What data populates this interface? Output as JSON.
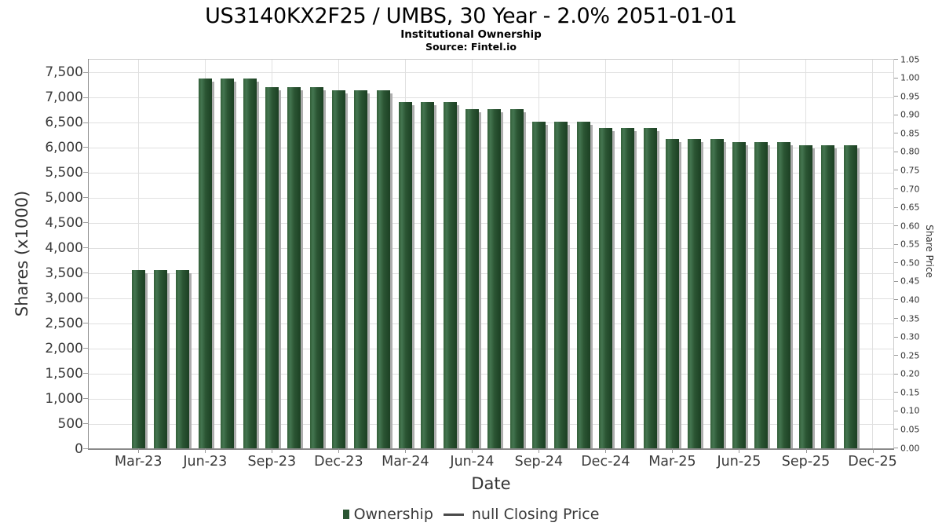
{
  "header": {
    "title": "US3140KX2F25 / UMBS, 30 Year - 2.0% 2051-01-01",
    "subtitle": "Institutional Ownership",
    "source": "Source: Fintel.io"
  },
  "chart_data": {
    "type": "bar",
    "title": "US3140KX2F25 / UMBS, 30 Year - 2.0% 2051-01-01",
    "subtitle": "Institutional Ownership",
    "source": "Source: Fintel.io",
    "xlabel": "Date",
    "ylabel_left": "Shares (x1000)",
    "ylabel_right": "Share Price",
    "x": [
      "Mar-23",
      "Apr-23",
      "May-23",
      "Jun-23",
      "Jul-23",
      "Aug-23",
      "Sep-23",
      "Oct-23",
      "Nov-23",
      "Dec-23",
      "Jan-24",
      "Feb-24",
      "Mar-24",
      "Apr-24",
      "May-24",
      "Jun-24",
      "Jul-24",
      "Aug-24",
      "Sep-24",
      "Oct-24",
      "Nov-24",
      "Dec-24",
      "Jan-25",
      "Feb-25",
      "Mar-25",
      "Apr-25",
      "May-25",
      "Jun-25",
      "Jul-25",
      "Aug-25",
      "Sep-25",
      "Oct-25",
      "Nov-25"
    ],
    "series": [
      {
        "name": "Ownership",
        "unit": "shares x1000",
        "values": [
          3560,
          3560,
          3560,
          7380,
          7380,
          7380,
          7220,
          7220,
          7220,
          7150,
          7150,
          7150,
          6910,
          6910,
          6910,
          6770,
          6770,
          6770,
          6530,
          6530,
          6530,
          6400,
          6400,
          6400,
          6180,
          6180,
          6180,
          6120,
          6120,
          6120,
          6050,
          6050,
          6050
        ]
      },
      {
        "name": "null Closing Price",
        "unit": "share price",
        "values": []
      }
    ],
    "x_tick_labels": [
      "Mar-23",
      "Jun-23",
      "Sep-23",
      "Dec-23",
      "Mar-24",
      "Jun-24",
      "Sep-24",
      "Dec-24",
      "Mar-25",
      "Jun-25",
      "Sep-25",
      "Dec-25"
    ],
    "y_left_tick_labels": [
      "0",
      "500",
      "1,000",
      "1,500",
      "2,000",
      "2,500",
      "3,000",
      "3,500",
      "4,000",
      "4,500",
      "5,000",
      "5,500",
      "6,000",
      "6,500",
      "7,000",
      "7,500"
    ],
    "y_left_tick_step": 500,
    "ylim_left": [
      0,
      7760
    ],
    "y_right_tick_labels": [
      "0.00",
      "0.05",
      "0.10",
      "0.15",
      "0.20",
      "0.25",
      "0.30",
      "0.35",
      "0.40",
      "0.45",
      "0.50",
      "0.55",
      "0.60",
      "0.65",
      "0.70",
      "0.75",
      "0.80",
      "0.85",
      "0.90",
      "0.95",
      "1.00",
      "1.05"
    ],
    "ylim_right": [
      0,
      1.05
    ],
    "grid": true,
    "legend_position": "bottom"
  },
  "legend": {
    "ownership": "Ownership",
    "closing_price": "null Closing Price"
  },
  "colors": {
    "bar_edge": "#336039",
    "bar_highlight": "#447550",
    "bar_mid": "#2b5533",
    "bar_dark": "#1c4023",
    "bar_shadow": "#adadad",
    "legend_swatch": "#2a5532",
    "grid": "#e0e0e0",
    "axis": "#8a8a8a",
    "tick": "#999999",
    "text": "#3a3a3a",
    "title_text": "#000000"
  }
}
